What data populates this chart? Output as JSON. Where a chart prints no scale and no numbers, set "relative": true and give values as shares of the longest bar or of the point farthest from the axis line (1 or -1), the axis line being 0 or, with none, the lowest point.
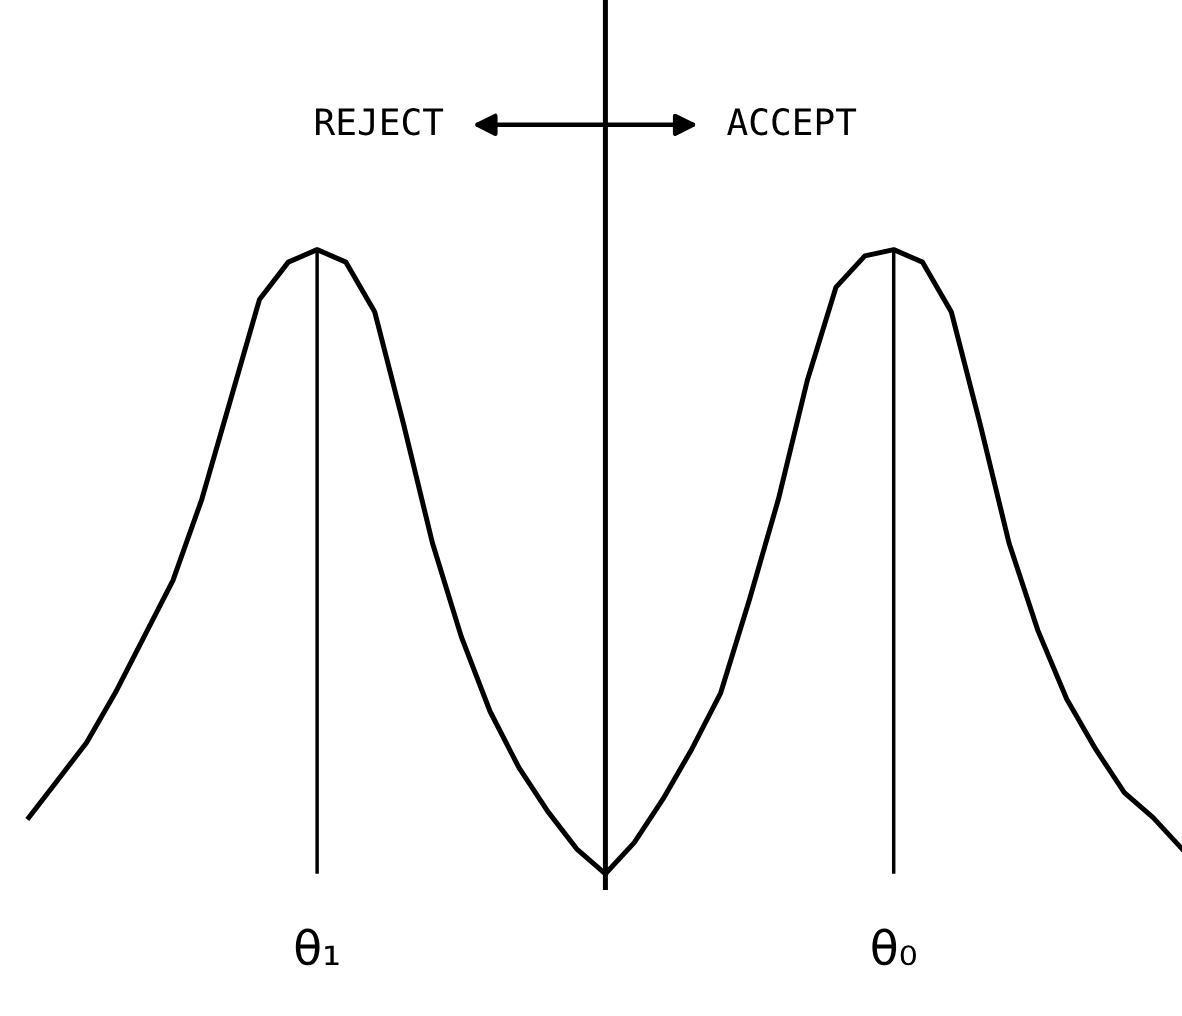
{
  "chart_data": {
    "type": "line",
    "relative": true,
    "marker": "none",
    "line_style": "solid",
    "categories": [
      null,
      null,
      null,
      null,
      null,
      null,
      null,
      null,
      null,
      null,
      "θ₁",
      null,
      null,
      null,
      null,
      null,
      null,
      null,
      null,
      null,
      null,
      null,
      null,
      null,
      null,
      null,
      null,
      null,
      null,
      null,
      "θ₀",
      null,
      null,
      null,
      null,
      null,
      null,
      null,
      null,
      null,
      null
    ],
    "series": [
      {
        "color": "#000000",
        "values": [
          0.09,
          0.15,
          0.21,
          0.29,
          0.38,
          0.47,
          0.6,
          0.76,
          0.92,
          0.98,
          1,
          0.98,
          0.9,
          0.72,
          0.53,
          0.38,
          0.26,
          0.17,
          0.1,
          0.04,
          0,
          0.05,
          0.12,
          0.2,
          0.29,
          0.44,
          0.6,
          0.79,
          0.94,
          0.99,
          1,
          0.98,
          0.9,
          0.72,
          0.53,
          0.39,
          0.28,
          0.2,
          0.13,
          0.09,
          0.04
        ]
      },
      {
        "type": "bar",
        "color": "#000000",
        "values": [
          null,
          null,
          null,
          null,
          null,
          null,
          null,
          null,
          null,
          null,
          1,
          null,
          null,
          null,
          null,
          null,
          null,
          null,
          null,
          null,
          null,
          null,
          null,
          null,
          null,
          null,
          null,
          null,
          null,
          null,
          1,
          null,
          null,
          null,
          null,
          null,
          null,
          null,
          null,
          null,
          null
        ]
      }
    ],
    "annotations": [
      "REJECT",
      "ACCEPT"
    ]
  }
}
